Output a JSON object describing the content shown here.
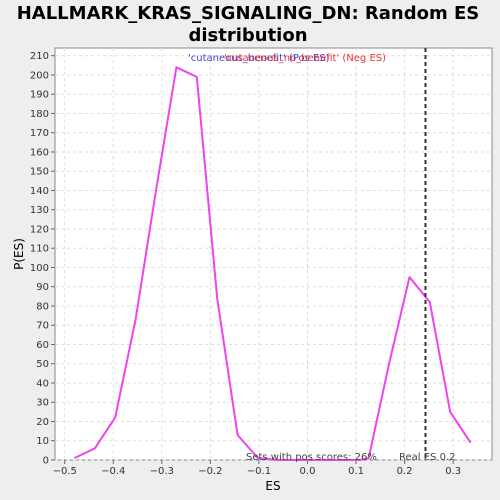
{
  "chart_data": {
    "type": "line",
    "title_line1": "HALLMARK_KRAS_SIGNALING_DN: Random ES",
    "title_line2": "distribution",
    "xlabel": "ES",
    "ylabel": "P(ES)",
    "xlim": [
      -0.52,
      0.38
    ],
    "ylim": [
      0,
      214
    ],
    "x_ticks": [
      -0.5,
      -0.4,
      -0.3,
      -0.2,
      -0.1,
      0.0,
      0.1,
      0.2,
      0.3
    ],
    "x_tick_labels": [
      "−0.5",
      "−0.4",
      "−0.3",
      "−0.2",
      "−0.1",
      "0.0",
      "0.1",
      "0.2",
      "0.3"
    ],
    "y_ticks": [
      0,
      10,
      20,
      30,
      40,
      50,
      60,
      70,
      80,
      90,
      100,
      110,
      120,
      130,
      140,
      150,
      160,
      170,
      180,
      190,
      200,
      210
    ],
    "grid": true,
    "series": [
      {
        "color": "#ee44ee",
        "x": [
          -0.48,
          -0.438,
          -0.396,
          -0.354,
          -0.312,
          -0.27,
          -0.228,
          -0.186,
          -0.144,
          -0.102,
          -0.06,
          -0.018,
          0.024,
          0.066,
          0.108,
          0.126,
          0.168,
          0.21,
          0.252,
          0.294,
          0.336
        ],
        "y": [
          1,
          6,
          22,
          73,
          140,
          204,
          199,
          84,
          13,
          1,
          0,
          0,
          0,
          0,
          0,
          1,
          50,
          95,
          82,
          25,
          9
        ]
      }
    ],
    "real_es": 0.243,
    "legend": {
      "pos_text": "'cutaneous_benefit' (Pos ES)",
      "neg_text": "'cutaneous_no_benefit' (Neg ES)",
      "pos_color": "#4444cc",
      "neg_color": "#ee3333"
    },
    "annotations": {
      "pos_scores": "Sets with pos scores: 26%",
      "real_es": "Real ES 0.2"
    }
  }
}
